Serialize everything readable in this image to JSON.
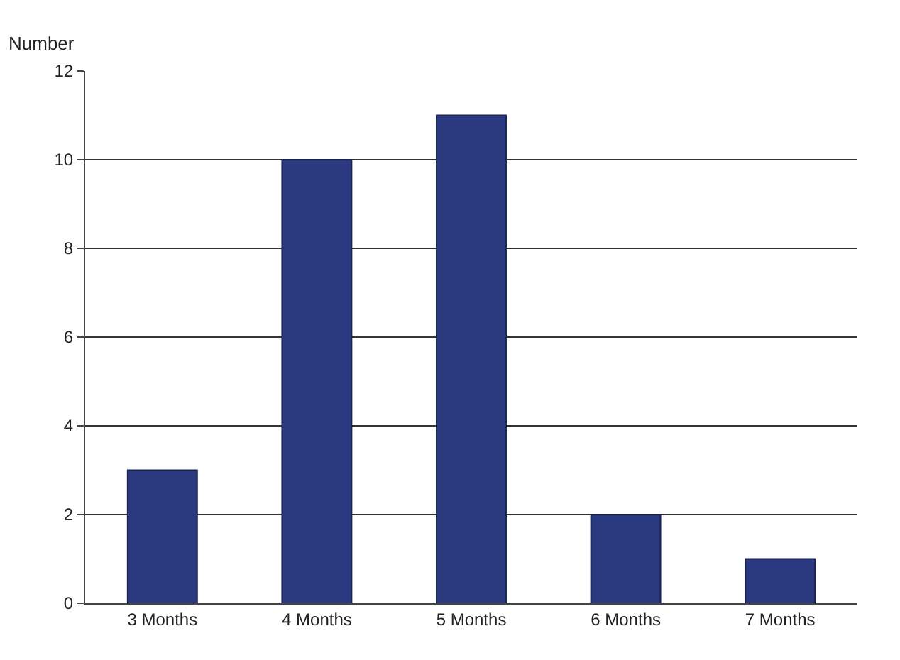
{
  "chart_data": {
    "type": "bar",
    "ylabel": "Number",
    "categories": [
      "3 Months",
      "4 Months",
      "5 Months",
      "6 Months",
      "7 Months"
    ],
    "values": [
      3,
      10,
      11,
      2,
      1
    ],
    "color": "#2b3a80",
    "ylim": [
      0,
      12
    ],
    "yticks": [
      0,
      2,
      4,
      6,
      8,
      10,
      12
    ],
    "grid": "y"
  }
}
